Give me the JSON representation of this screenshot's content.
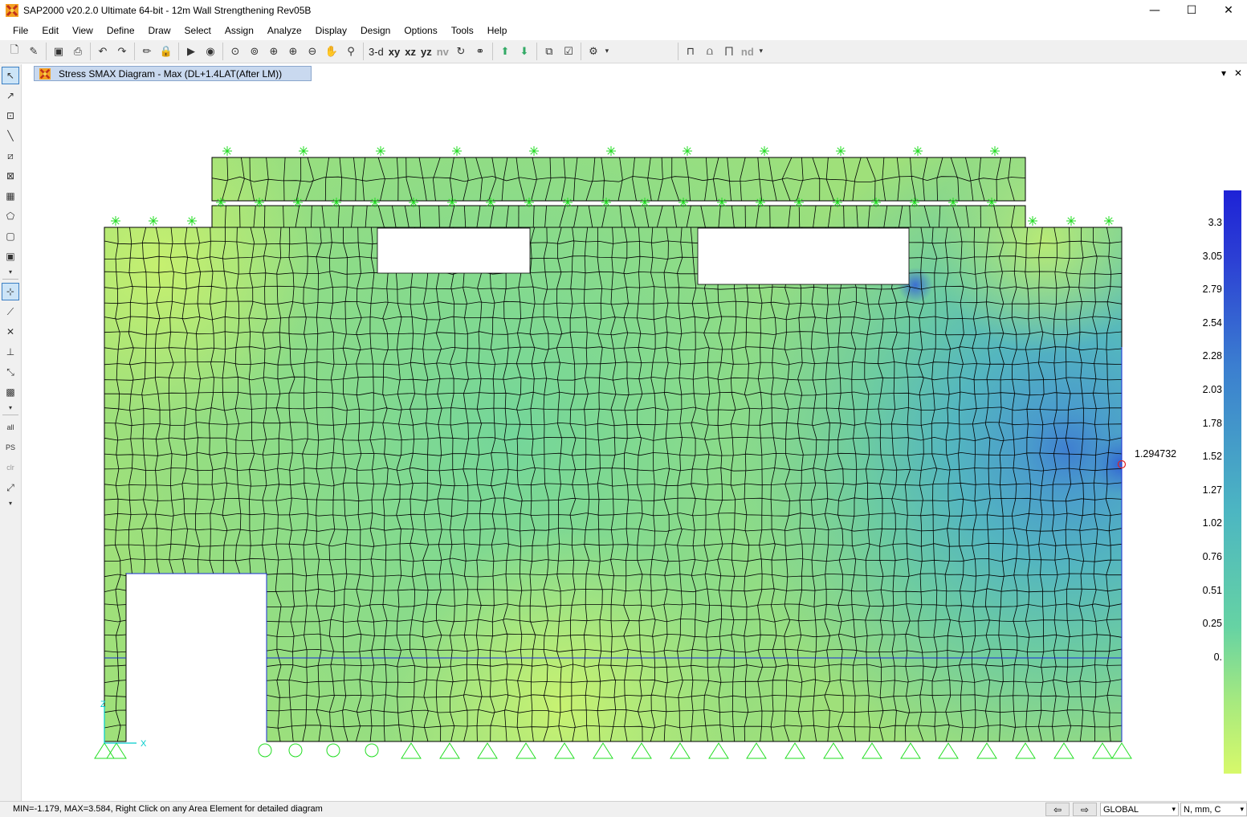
{
  "window": {
    "title": "SAP2000 v20.2.0 Ultimate 64-bit - 12m Wall Strengthening Rev05B",
    "minimize": "—",
    "maximize": "☐",
    "close": "✕"
  },
  "menu": [
    "File",
    "Edit",
    "View",
    "Define",
    "Draw",
    "Select",
    "Assign",
    "Analyze",
    "Display",
    "Design",
    "Options",
    "Tools",
    "Help"
  ],
  "toolbar": {
    "view_3d": "3-d",
    "view_xy": "xy",
    "view_xz": "xz",
    "view_yz": "yz",
    "view_nv": "nv",
    "nd_label": "nd"
  },
  "left_tools": {
    "all": "all",
    "ps": "PS",
    "clr": "clr"
  },
  "tab": {
    "label": "Stress SMAX Diagram - Max   (DL+1.4LAT(After LM))"
  },
  "tab_controls": {
    "dropdown": "▾",
    "close": "✕"
  },
  "legend": {
    "values": [
      "3.3",
      "3.05",
      "2.79",
      "2.54",
      "2.28",
      "2.03",
      "1.78",
      "1.52",
      "1.27",
      "1.02",
      "0.76",
      "0.51",
      "0.25",
      "0."
    ],
    "colors": {
      "top": "#1e22d6",
      "upper": "#3a8ad2",
      "mid": "#4fbcbc",
      "lower": "#6fd79a",
      "bottom": "#d7f96a"
    }
  },
  "model": {
    "max_point_value": "1.294732",
    "axis_x": "X",
    "axis_z": "Z",
    "colors": {
      "mesh": "#000000",
      "support": "#22dd22",
      "grid_line": "#1a2bd6",
      "base_fill": "#9fe07a",
      "marker": "#e02020"
    }
  },
  "status": {
    "message": "MIN=-1.179, MAX=3.584, Right Click on any Area Element for detailed diagram",
    "prev": "⇦",
    "next": "⇨",
    "coord_system": "GLOBAL",
    "units": "N, mm, C"
  }
}
